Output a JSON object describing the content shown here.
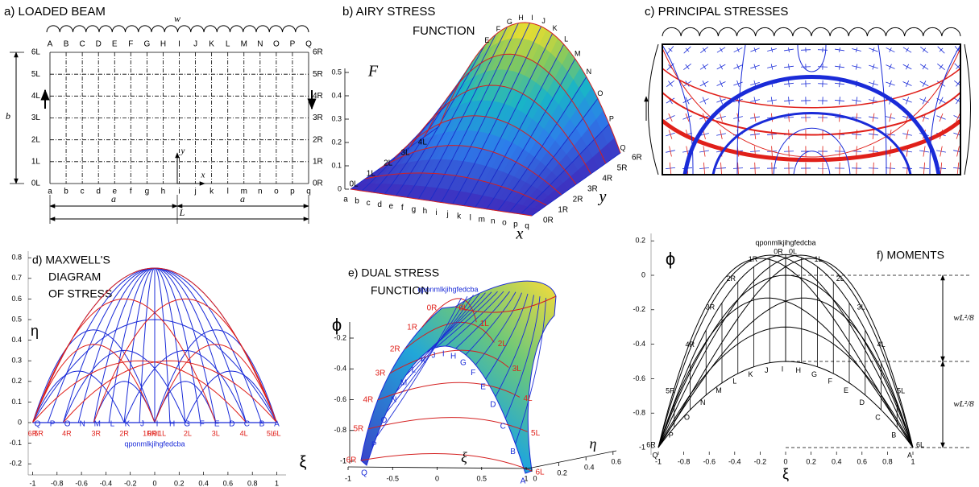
{
  "a": {
    "title": "a)  LOADED BEAM",
    "load": "w",
    "top_letters": [
      "A",
      "B",
      "C",
      "D",
      "E",
      "F",
      "G",
      "H",
      "I",
      "J",
      "K",
      "L",
      "M",
      "N",
      "O",
      "P",
      "Q"
    ],
    "bottom_letters": [
      "a",
      "b",
      "c",
      "d",
      "e",
      "f",
      "g",
      "h",
      "i",
      "j",
      "k",
      "l",
      "m",
      "n",
      "o",
      "p",
      "q"
    ],
    "left_labels": [
      "6L",
      "5L",
      "4L",
      "3L",
      "2L",
      "1L",
      "0L"
    ],
    "right_labels": [
      "6R",
      "5R",
      "4R",
      "3R",
      "2R",
      "1R",
      "0R"
    ],
    "height": "b",
    "half_span_left": "a",
    "half_span_right": "a",
    "span": "L",
    "x_axis": "x",
    "y_axis": "y"
  },
  "b": {
    "title": "b)  AIRY STRESS",
    "title_line2": "FUNCTION",
    "z_label": "F",
    "zticks": [
      0,
      0.1,
      0.2,
      0.3,
      0.4,
      0.5
    ],
    "x_label": "x",
    "y_label": "y",
    "top_letters": [
      "E",
      "F",
      "G",
      "H",
      "I",
      "J",
      "K",
      "L",
      "M",
      "N",
      "O",
      "P",
      "Q"
    ],
    "bottom_letters": [
      "a",
      "b",
      "c",
      "d",
      "e",
      "f",
      "g",
      "h",
      "i",
      "j",
      "k",
      "l",
      "m",
      "n",
      "o",
      "p",
      "q"
    ],
    "left_labels": [
      "0L",
      "1L",
      "2L",
      "3L",
      "4L"
    ],
    "right_labels": [
      "0R",
      "1R",
      "2R",
      "3R",
      "4R",
      "5R",
      "6R"
    ]
  },
  "c": {
    "title": "c) PRINCIPAL STRESSES"
  },
  "d": {
    "title_lines": [
      "d) MAXWELL'S",
      "DIAGRAM",
      "OF STRESS"
    ],
    "y_label": "η",
    "x_label": "ξ",
    "xticks": [
      -1,
      -0.8,
      -0.6,
      -0.4,
      -0.2,
      0,
      0.2,
      0.4,
      0.6,
      0.8,
      1
    ],
    "yticks": [
      -0.2,
      -0.1,
      0,
      0.1,
      0.2,
      0.3,
      0.4,
      0.5,
      0.6,
      0.7,
      0.8
    ],
    "upper_letters": [
      "Q",
      "P",
      "O",
      "N",
      "M",
      "L",
      "K",
      "J",
      "I",
      "H",
      "G",
      "F",
      "E",
      "D",
      "C",
      "B",
      "A"
    ],
    "lower_labels": [
      "6R",
      "5R",
      "4R",
      "3R",
      "2R",
      "1R",
      "0R",
      "0L",
      "1L",
      "2L",
      "3L",
      "4L",
      "5L",
      "6L"
    ],
    "center_label": "qponmlkjihgfedcba"
  },
  "e": {
    "title_lines": [
      "e) DUAL STRESS",
      "FUNCTION"
    ],
    "z_label": "ϕ",
    "x_label": "ξ",
    "y_label": "η",
    "zticks": [
      -0.2,
      -0.4,
      -0.6,
      -0.8,
      -1
    ],
    "xticks": [
      -1,
      -0.5,
      0,
      0.5,
      1
    ],
    "yticks": [
      0,
      0.2,
      0.4,
      0.6
    ],
    "letters": [
      "Q",
      "P",
      "O",
      "N",
      "M",
      "L",
      "K",
      "J",
      "I",
      "H",
      "G",
      "F",
      "E",
      "D",
      "C",
      "B",
      "A"
    ],
    "left_labels": [
      "0R",
      "1R",
      "2R",
      "3R",
      "4R",
      "5R",
      "6R"
    ],
    "right_labels": [
      "0L",
      "1L",
      "2L",
      "3L",
      "4L",
      "5L",
      "6L"
    ],
    "top_label": "qponmlkjihgfedcba"
  },
  "f": {
    "title": "f) MOMENTS",
    "y_label": "ϕ",
    "x_label": "ξ",
    "yticks": [
      0.2,
      0,
      -0.2,
      -0.4,
      -0.6,
      -0.8,
      -1
    ],
    "xticks": [
      -1,
      -0.8,
      -0.6,
      -0.4,
      -0.2,
      0,
      0.2,
      0.4,
      0.6,
      0.8,
      1
    ],
    "letters": [
      "Q",
      "P",
      "O",
      "N",
      "M",
      "L",
      "K",
      "J",
      "I",
      "H",
      "G",
      "F",
      "E",
      "D",
      "C",
      "B",
      "A"
    ],
    "left_labels": [
      "0R",
      "1R",
      "2R",
      "3R",
      "4R",
      "5R",
      "6R"
    ],
    "right_labels": [
      "0L",
      "1L",
      "2L",
      "3L",
      "4L",
      "5L",
      "6L"
    ],
    "top_label": "qponmlkjihgfedcba",
    "dim_labels": [
      "wL²/8",
      "wL²/8"
    ]
  }
}
